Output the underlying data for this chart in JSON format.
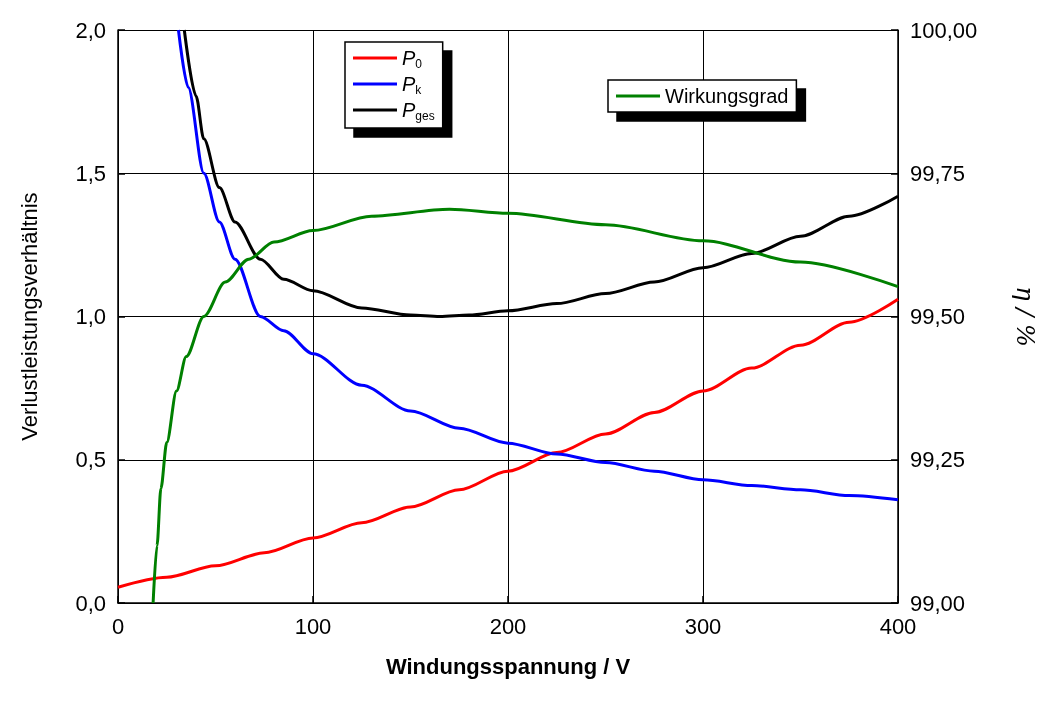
{
  "chart_data": {
    "type": "line",
    "xlabel": "Windungsspannung / V",
    "ylabel": "Verlustleistungsverhältnis",
    "y2label": "η / %",
    "xlim": [
      0,
      400
    ],
    "xticks": [
      0,
      100,
      200,
      300,
      400
    ],
    "ylim": [
      0,
      2
    ],
    "yticks": [
      {
        "value": 0,
        "label": "0,0"
      },
      {
        "value": 0.5,
        "label": "0,5"
      },
      {
        "value": 1,
        "label": "1,0"
      },
      {
        "value": 1.5,
        "label": "1,5"
      },
      {
        "value": 2,
        "label": "2,0"
      }
    ],
    "y2lim": [
      99,
      100
    ],
    "y2ticks": [
      {
        "value": 99,
        "label": "99,00"
      },
      {
        "value": 99.25,
        "label": "99,25"
      },
      {
        "value": 99.5,
        "label": "99,50"
      },
      {
        "value": 99.75,
        "label": "99,75"
      },
      {
        "value": 100,
        "label": "100,00"
      }
    ],
    "grid": true,
    "legend": "top",
    "marker": "none",
    "line_style": "solid",
    "series": [
      {
        "name": "P$_{0}$",
        "color": "#ff0000",
        "x": [
          0,
          25,
          50,
          75,
          100,
          125,
          150,
          175,
          200,
          225,
          250,
          275,
          300,
          325,
          350,
          375,
          400
        ],
        "values": [
          0.055,
          0.09,
          0.13,
          0.175,
          0.227,
          0.28,
          0.335,
          0.395,
          0.46,
          0.525,
          0.59,
          0.665,
          0.74,
          0.82,
          0.9,
          0.98,
          1.06
        ]
      },
      {
        "name": "P$_{k}$",
        "color": "#0000ff",
        "x": [
          31,
          36,
          44,
          52,
          60,
          73,
          85,
          100,
          125,
          150,
          175,
          200,
          225,
          250,
          275,
          300,
          325,
          350,
          375,
          400
        ],
        "values": [
          2.0,
          1.8,
          1.5,
          1.33,
          1.2,
          1.0,
          0.95,
          0.87,
          0.76,
          0.67,
          0.61,
          0.558,
          0.52,
          0.49,
          0.46,
          0.43,
          0.41,
          0.395,
          0.375,
          0.36
        ]
      },
      {
        "name": "P$_{ges}$",
        "color": "#000000",
        "x": [
          34,
          40,
          44,
          52,
          60,
          73,
          85,
          100,
          125,
          150,
          165,
          180,
          200,
          225,
          250,
          275,
          300,
          325,
          350,
          375,
          400
        ],
        "values": [
          2.0,
          1.77,
          1.62,
          1.45,
          1.33,
          1.2,
          1.13,
          1.09,
          1.03,
          1.005,
          1.0,
          1.005,
          1.02,
          1.045,
          1.08,
          1.12,
          1.17,
          1.22,
          1.28,
          1.35,
          1.42
        ]
      },
      {
        "name": "Wirkungsgrad",
        "color": "#008000",
        "axis": "y2",
        "x": [
          18,
          20,
          22,
          25,
          30,
          35,
          44,
          55,
          67,
          80,
          100,
          130,
          170,
          200,
          250,
          300,
          350,
          400
        ],
        "values": [
          99.0,
          99.1,
          99.2,
          99.28,
          99.37,
          99.43,
          99.5,
          99.56,
          99.6,
          99.63,
          99.65,
          99.675,
          99.687,
          99.68,
          99.66,
          99.632,
          99.595,
          99.552
        ]
      }
    ]
  }
}
